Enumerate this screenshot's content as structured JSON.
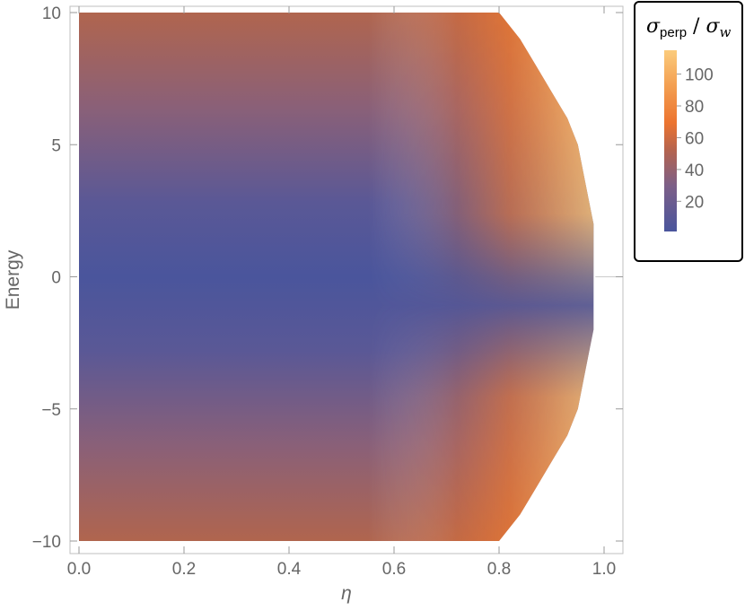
{
  "chart_data": {
    "type": "heatmap",
    "title": "",
    "xlabel": "η",
    "ylabel": "Energy",
    "xlim": [
      0.0,
      1.0
    ],
    "ylim": [
      -10,
      10
    ],
    "x_ticks": [
      "0.0",
      "0.2",
      "0.4",
      "0.6",
      "0.8",
      "1.0"
    ],
    "y_ticks": [
      "−10",
      "−5",
      "0",
      "5",
      "10"
    ],
    "x_tick_values": [
      0.0,
      0.2,
      0.4,
      0.6,
      0.8,
      1.0
    ],
    "y_tick_values": [
      -10,
      -5,
      0,
      5,
      10
    ],
    "grid": false,
    "region_boundary": {
      "description_energy": [
        -10,
        -9,
        -8,
        -7,
        -6,
        -5,
        -4,
        -3,
        -2,
        -1,
        0,
        1,
        2,
        3,
        4,
        5,
        6,
        7,
        8,
        9,
        10
      ],
      "eta_max": [
        0.8,
        0.84,
        0.87,
        0.9,
        0.93,
        0.95,
        0.96,
        0.97,
        0.98,
        0.98,
        0.98,
        0.98,
        0.98,
        0.97,
        0.96,
        0.95,
        0.93,
        0.9,
        0.87,
        0.84,
        0.8
      ]
    },
    "colorbar": {
      "title_main": "σ",
      "title_sub1": "perp",
      "title_sep": " / ",
      "title_sub2": "w",
      "ticks": [
        "20",
        "40",
        "60",
        "80",
        "100"
      ],
      "tick_values": [
        20,
        40,
        60,
        80,
        100
      ],
      "range": [
        1,
        115
      ],
      "placement": "right"
    },
    "colors": {
      "low": "#4a559c",
      "mid_low": "#7c5f88",
      "mid": "#b5644e",
      "mid_high": "#ec7430",
      "high": "#fbcb7c"
    }
  }
}
